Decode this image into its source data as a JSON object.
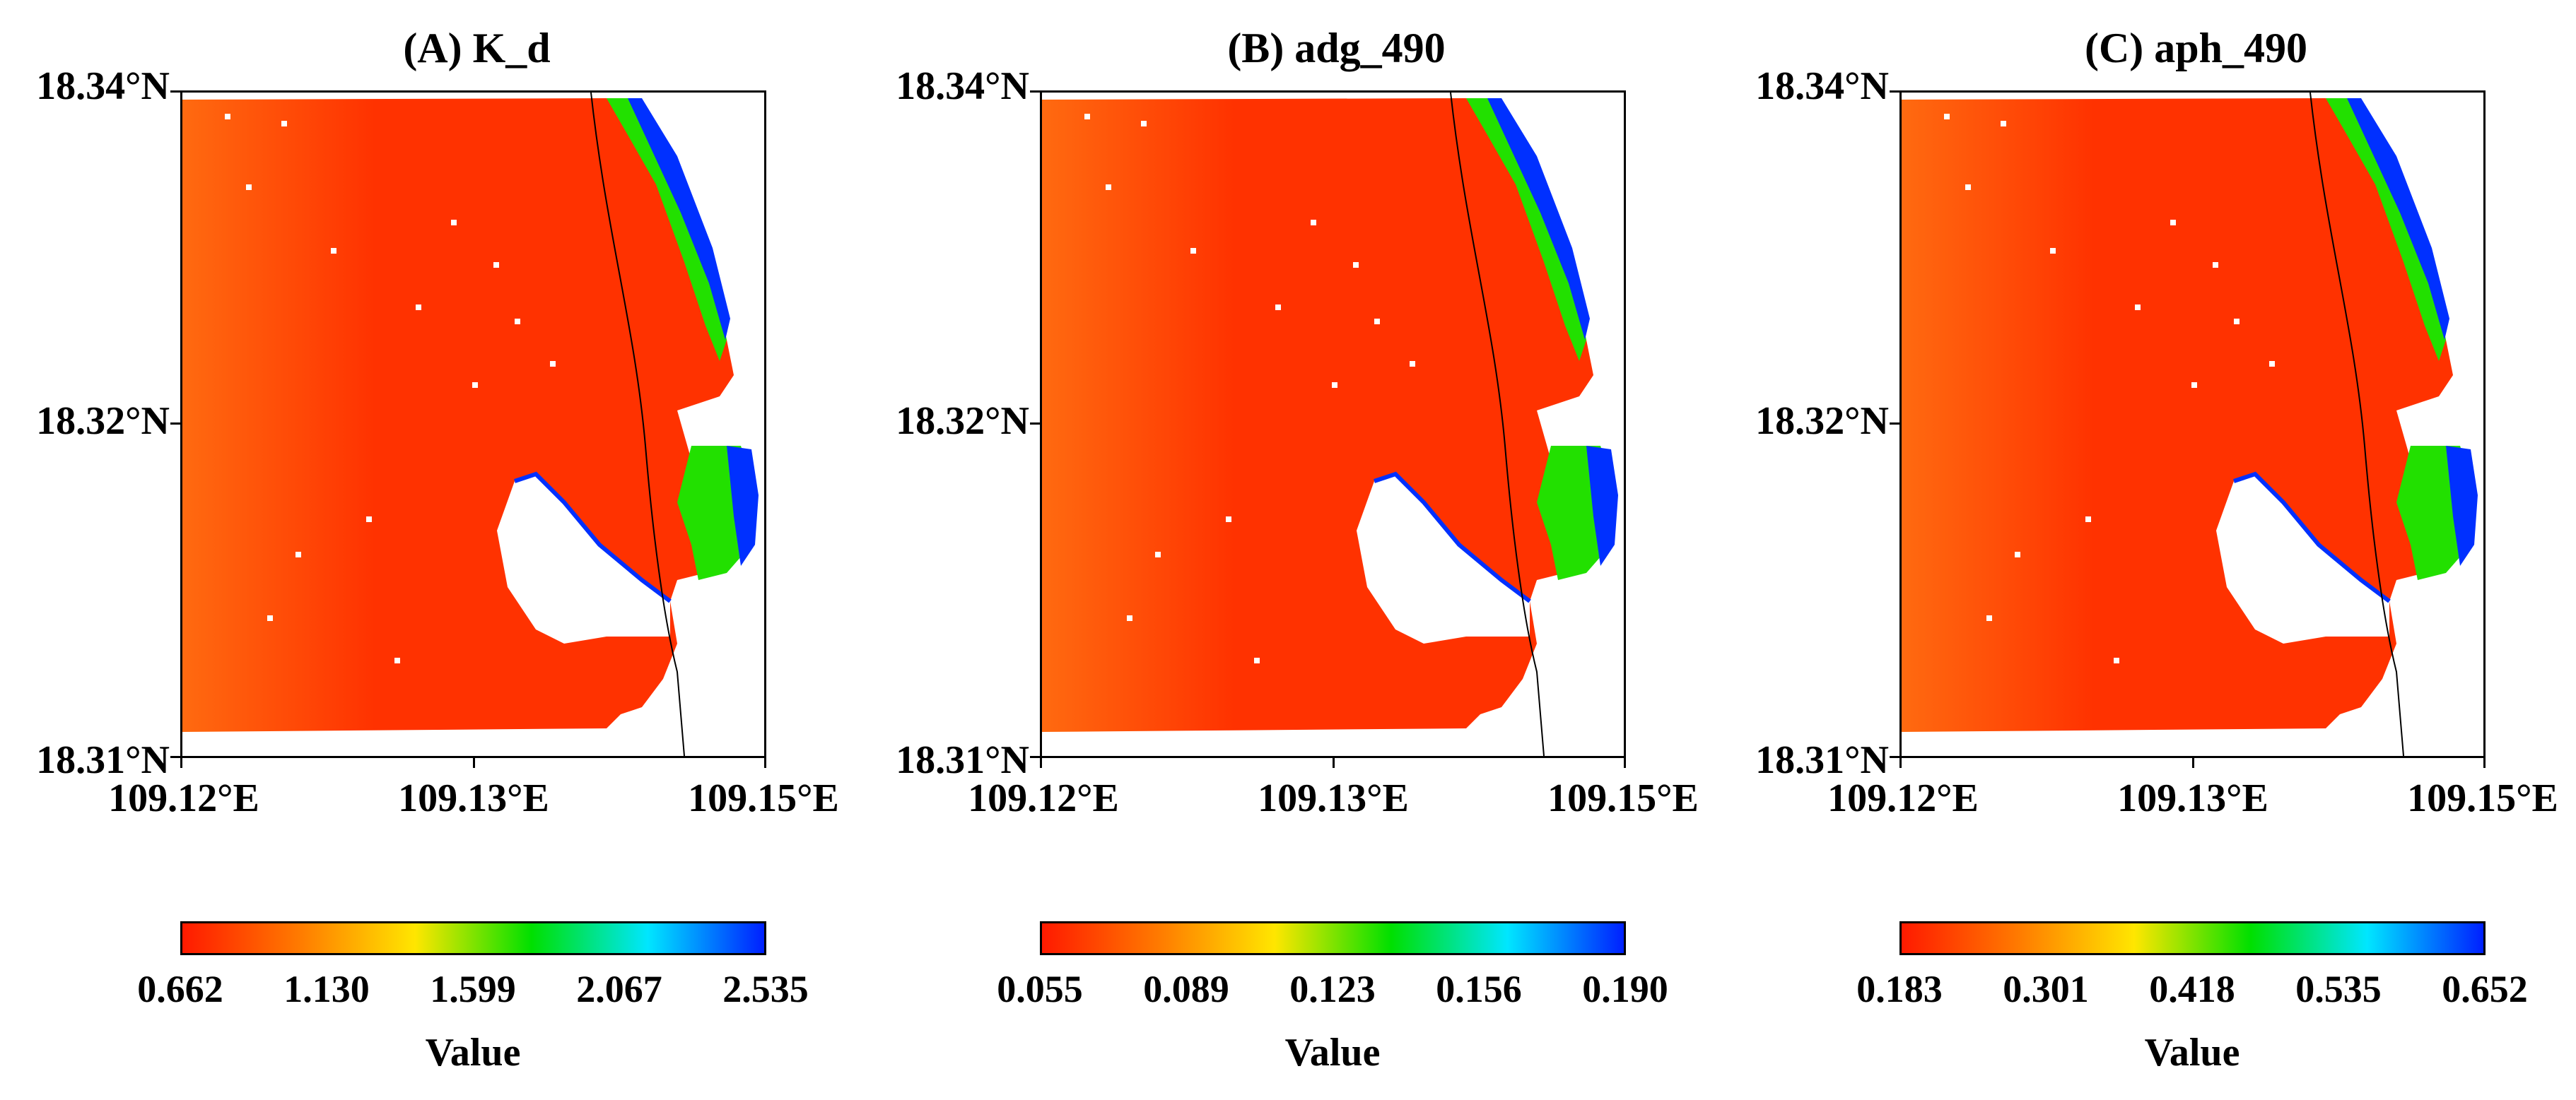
{
  "panels": [
    {
      "title": "(A) K_d",
      "lat_labels": [
        "18.34°N",
        "18.32°N",
        "18.31°N"
      ],
      "lon_labels": [
        "109.12°E",
        "109.13°E",
        "109.15°E"
      ],
      "colorbar": {
        "labels": [
          "0.662",
          "1.130",
          "1.599",
          "2.067",
          "2.535"
        ],
        "title": "Value"
      }
    },
    {
      "title": "(B) adg_490",
      "lat_labels": [
        "18.34°N",
        "18.32°N",
        "18.31°N"
      ],
      "lon_labels": [
        "109.12°E",
        "109.13°E",
        "109.15°E"
      ],
      "colorbar": {
        "labels": [
          "0.055",
          "0.089",
          "0.123",
          "0.156",
          "0.190"
        ],
        "title": "Value"
      }
    },
    {
      "title": "(C) aph_490",
      "lat_labels": [
        "18.34°N",
        "18.32°N",
        "18.31°N"
      ],
      "lon_labels": [
        "109.12°E",
        "109.13°E",
        "109.15°E"
      ],
      "colorbar": {
        "labels": [
          "0.183",
          "0.301",
          "0.418",
          "0.535",
          "0.652"
        ],
        "title": "Value"
      }
    }
  ],
  "colors": {
    "colormap": [
      "#ff1a00",
      "#ff7a00",
      "#ffe600",
      "#00e000",
      "#00e6ff",
      "#0020ff"
    ],
    "water_main": "#ff3200",
    "water_shallow": "#ff6a10",
    "coast_green": "#22e000",
    "coast_blue": "#0030ff",
    "land": "#ffffff",
    "track_line": "#000000"
  }
}
